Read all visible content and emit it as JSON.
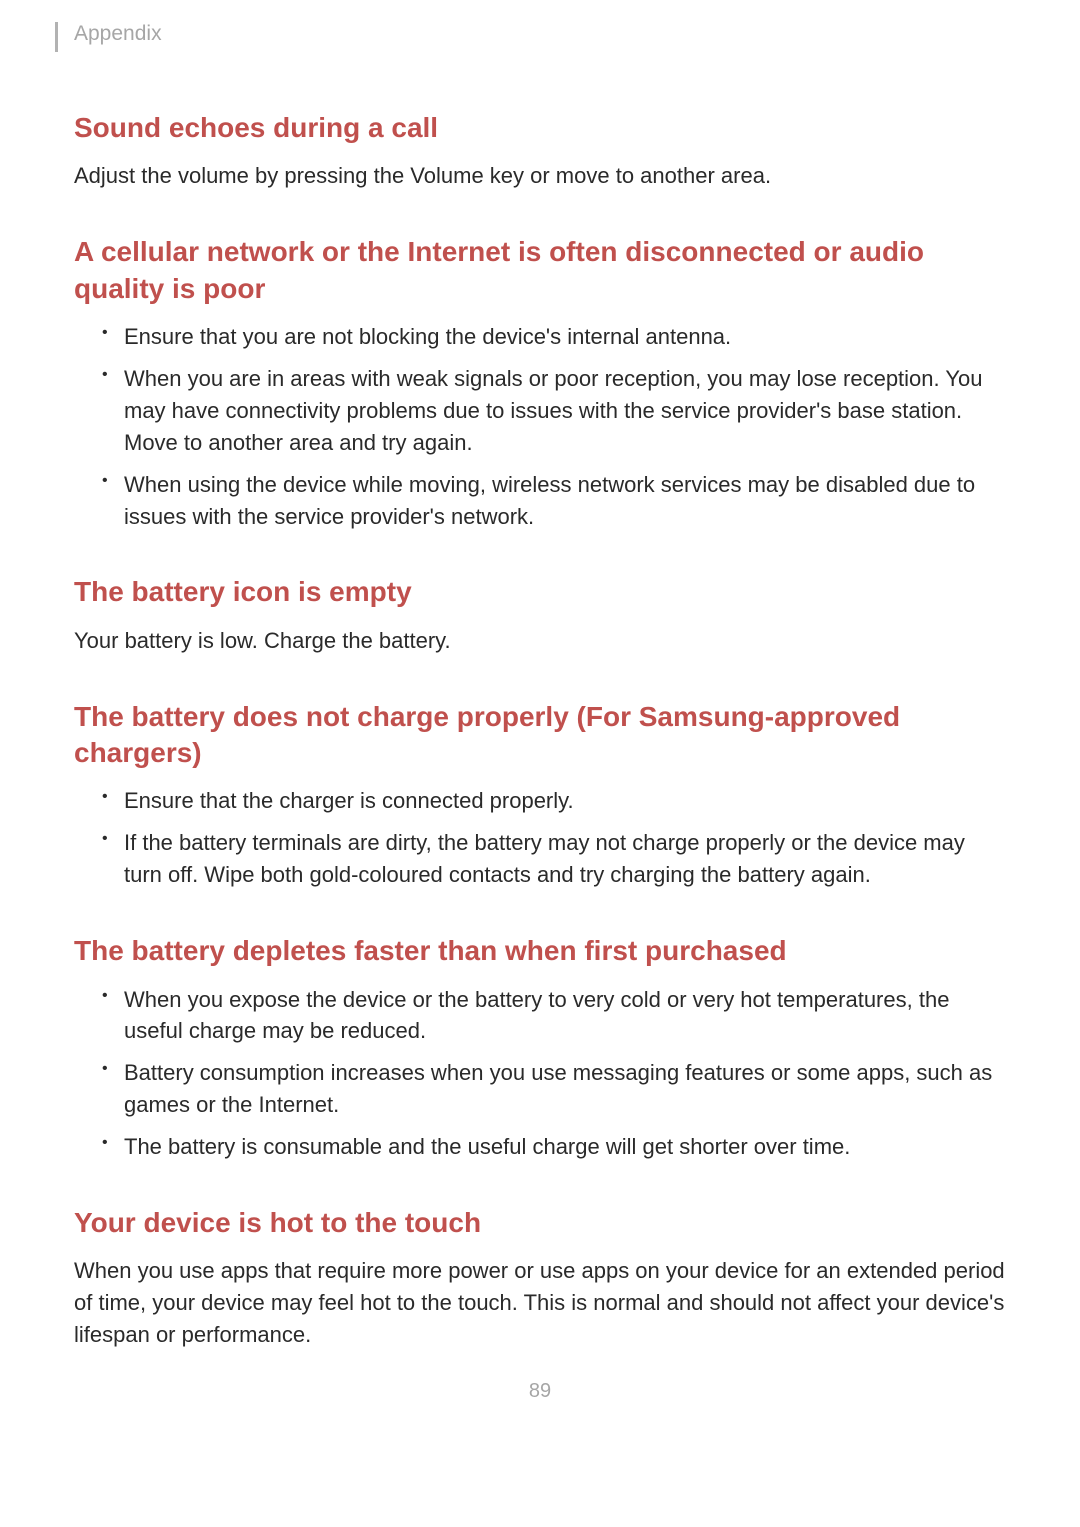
{
  "header": {
    "label": "Appendix"
  },
  "sections": [
    {
      "title": "Sound echoes during a call",
      "body": "Adjust the volume by pressing the Volume key or move to another area.",
      "bullets": []
    },
    {
      "title": "A cellular network or the Internet is often disconnected or audio quality is poor",
      "body": "",
      "bullets": [
        "Ensure that you are not blocking the device's internal antenna.",
        "When you are in areas with weak signals or poor reception, you may lose reception. You may have connectivity problems due to issues with the service provider's base station. Move to another area and try again.",
        "When using the device while moving, wireless network services may be disabled due to issues with the service provider's network."
      ]
    },
    {
      "title": "The battery icon is empty",
      "body": "Your battery is low. Charge the battery.",
      "bullets": []
    },
    {
      "title": "The battery does not charge properly (For Samsung-approved chargers)",
      "body": "",
      "bullets": [
        "Ensure that the charger is connected properly.",
        "If the battery terminals are dirty, the battery may not charge properly or the device may turn off. Wipe both gold-coloured contacts and try charging the battery again."
      ]
    },
    {
      "title": "The battery depletes faster than when first purchased",
      "body": "",
      "bullets": [
        "When you expose the device or the battery to very cold or very hot temperatures, the useful charge may be reduced.",
        "Battery consumption increases when you use messaging features or some apps, such as games or the Internet.",
        "The battery is consumable and the useful charge will get shorter over time."
      ]
    },
    {
      "title": "Your device is hot to the touch",
      "body": "When you use apps that require more power or use apps on your device for an extended period of time, your device may feel hot to the touch. This is normal and should not affect your device's lifespan or performance.",
      "bullets": []
    }
  ],
  "page_number": "89",
  "styling": {
    "heading_color": "#c0504d",
    "body_color": "#2a2a2a",
    "header_label_color": "#a6a6a6",
    "page_number_color": "#a6a6a6",
    "background_color": "#ffffff",
    "heading_fontsize": 28,
    "body_fontsize": 22,
    "header_fontsize": 21
  }
}
